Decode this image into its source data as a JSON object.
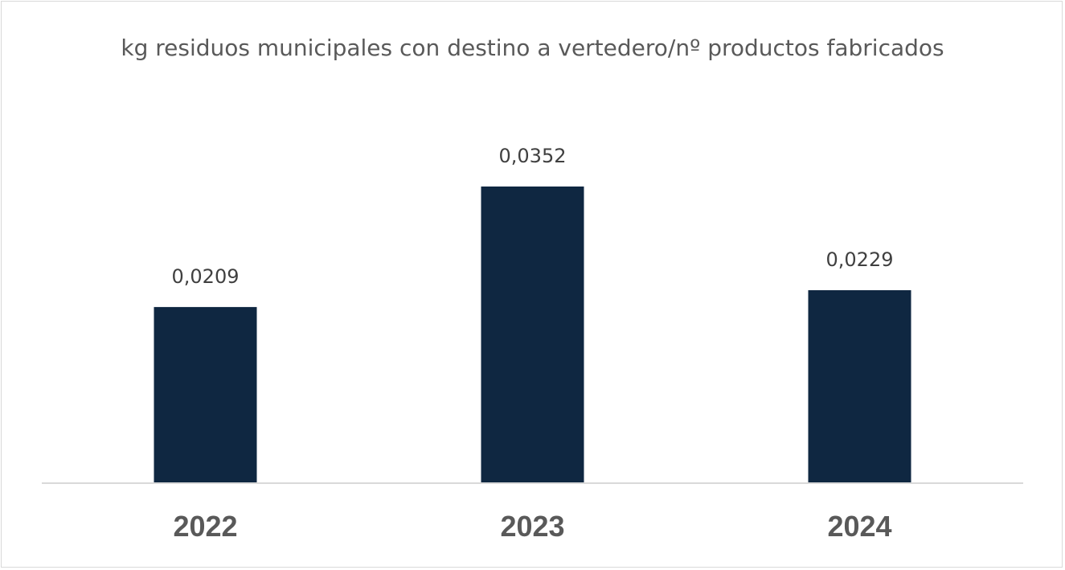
{
  "chart_data": {
    "type": "bar",
    "title": "kg residuos municipales con destino a vertedero/nº productos fabricados",
    "categories": [
      "2022",
      "2023",
      "2024"
    ],
    "values": [
      0.0209,
      0.0352,
      0.0229
    ],
    "data_labels": [
      "0,0209",
      "0,0352",
      "0,0229"
    ],
    "xlabel": "",
    "ylabel": "",
    "ylim": [
      0,
      0.04
    ],
    "grid": false,
    "legend": "none",
    "colors": {
      "bar": "#0f2741",
      "title": "#595959",
      "axis": "#d9d9d9"
    }
  }
}
